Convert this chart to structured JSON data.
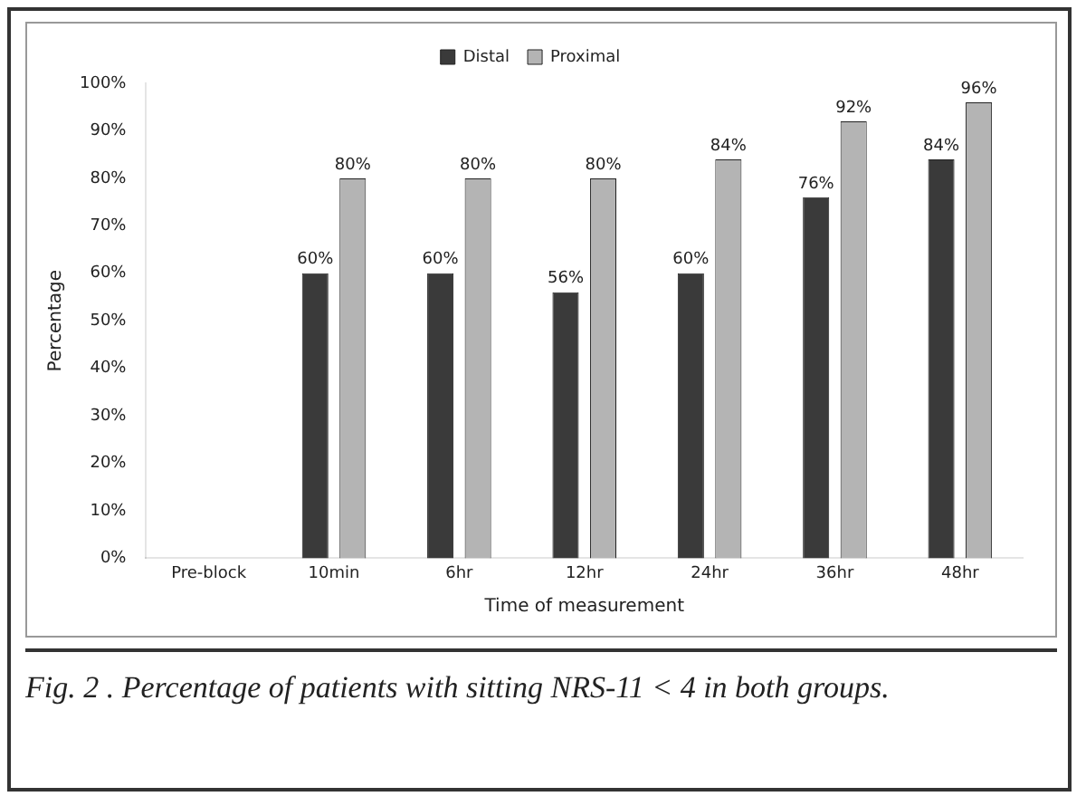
{
  "chart_data": {
    "type": "bar",
    "xlabel": "Time of measurement",
    "ylabel": "Percentage",
    "categories": [
      "Pre-block",
      "10min",
      "6hr",
      "12hr",
      "24hr",
      "36hr",
      "48hr"
    ],
    "series": [
      {
        "name": "Distal",
        "color": "#3a3a3a",
        "values": [
          null,
          60,
          60,
          56,
          60,
          76,
          84
        ],
        "value_labels": [
          null,
          "60%",
          "60%",
          "56%",
          "60%",
          "76%",
          "84%"
        ]
      },
      {
        "name": "Proximal",
        "color": "#b4b4b4",
        "values": [
          null,
          80,
          80,
          80,
          84,
          92,
          96
        ],
        "value_labels": [
          null,
          "80%",
          "80%",
          "80%",
          "84%",
          "92%",
          "96%"
        ]
      }
    ],
    "ylim": [
      0,
      100
    ],
    "yticks": [
      {
        "value": 0,
        "label": "0%"
      },
      {
        "value": 10,
        "label": "10%"
      },
      {
        "value": 20,
        "label": "20%"
      },
      {
        "value": 30,
        "label": "30%"
      },
      {
        "value": 40,
        "label": "40%"
      },
      {
        "value": 50,
        "label": "50%"
      },
      {
        "value": 60,
        "label": "60%"
      },
      {
        "value": 70,
        "label": "70%"
      },
      {
        "value": 80,
        "label": "80%"
      },
      {
        "value": 90,
        "label": "90%"
      },
      {
        "value": 100,
        "label": "100%"
      }
    ],
    "grid": false,
    "legend": "top",
    "annotations": [
      "Fig. 2 . Percentage of patients with sitting NRS-11 < 4 in both groups."
    ]
  }
}
